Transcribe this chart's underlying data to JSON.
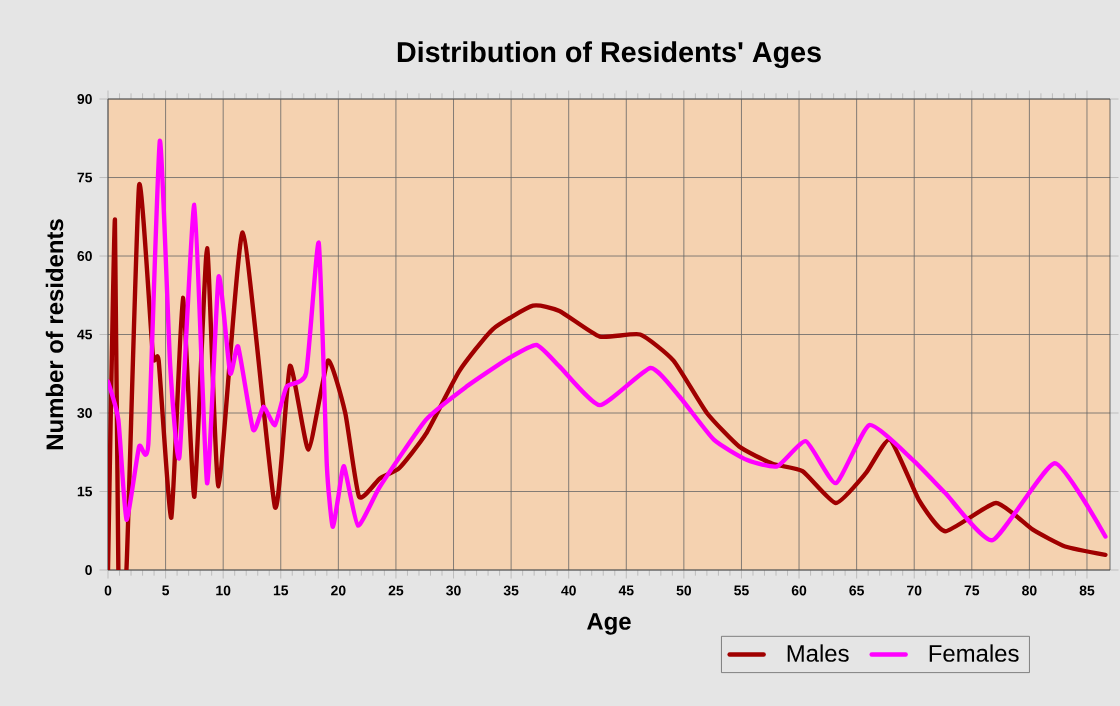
{
  "chart_data": {
    "type": "line",
    "title": "Distribution of Residents' Ages",
    "xlabel": "Age",
    "ylabel": "Number of residents",
    "xlim": [
      0,
      87
    ],
    "xticks": [
      0,
      5,
      10,
      15,
      20,
      25,
      30,
      35,
      40,
      45,
      50,
      55,
      60,
      65,
      70,
      75,
      80,
      85
    ],
    "ylim": [
      0,
      90
    ],
    "yticks": [
      0,
      15,
      30,
      45,
      60,
      75,
      90
    ],
    "grid": true,
    "legend": "bottom right",
    "marker": "none",
    "line_style": "solid",
    "series": [
      {
        "name": "Males",
        "color": "#a00000",
        "x": [
          0,
          0.6,
          0.9,
          1.6,
          2.7,
          3.9,
          4.4,
          5.5,
          6.5,
          7.5,
          8.6,
          9.6,
          11.7,
          14.5,
          15.8,
          17.4,
          19.1,
          20.6,
          21.8,
          23.6,
          25.3,
          27.6,
          30.5,
          33.4,
          36.9,
          39.2,
          42.7,
          46.2,
          49.1,
          52,
          54.8,
          57.7,
          60.3,
          63.2,
          65.8,
          67.9,
          70.4,
          72.7,
          77.1,
          80.3,
          83.1,
          86.6
        ],
        "values": [
          0,
          67,
          0,
          0,
          73.5,
          41,
          40,
          10,
          52,
          14,
          61.5,
          16,
          64.5,
          12,
          39,
          23,
          40,
          30,
          14,
          17.5,
          19.5,
          26,
          38,
          46,
          50.5,
          49.5,
          44.6,
          45,
          40,
          30,
          23.6,
          20.3,
          18.9,
          12.8,
          18.5,
          24.9,
          13.4,
          7.4,
          12.8,
          7.7,
          4.5,
          2.9
        ]
      },
      {
        "name": "Females",
        "color": "#ff00ff",
        "x": [
          0,
          0.9,
          1.6,
          2.7,
          3.5,
          4.5,
          5.4,
          6.2,
          7.5,
          8.6,
          9.6,
          10.6,
          11.3,
          12.6,
          13.5,
          14.5,
          15.5,
          17.2,
          18.3,
          19,
          19.5,
          20,
          20.5,
          21.7,
          23.6,
          27.6,
          31.1,
          34.6,
          37.2,
          39.2,
          42.7,
          47.1,
          49.6,
          52.6,
          55.5,
          58.1,
          60.6,
          63.2,
          66.1,
          69.9,
          72.7,
          76.8,
          82.2,
          86.6
        ],
        "values": [
          36,
          28.7,
          9.6,
          23.6,
          24,
          82,
          39,
          21.6,
          69.8,
          16.6,
          56,
          37.6,
          42.7,
          26.8,
          31.2,
          27.7,
          35,
          37.6,
          62.5,
          20,
          8.3,
          14,
          19.8,
          8.5,
          15.9,
          28.7,
          35,
          40.2,
          43,
          38.9,
          31.5,
          38.6,
          33.2,
          24.9,
          21,
          19.8,
          24.6,
          16.6,
          27.7,
          21,
          14.7,
          5.7,
          20.4,
          6.4
        ]
      }
    ]
  }
}
